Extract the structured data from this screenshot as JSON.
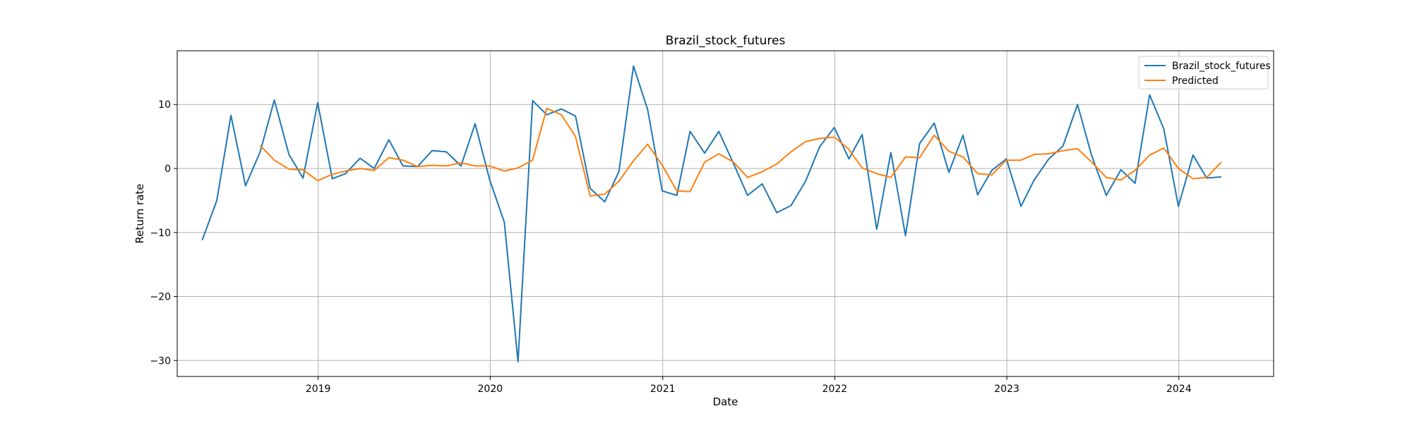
{
  "chart_data": {
    "type": "line",
    "title": "Brazil_stock_futures",
    "xlabel": "Date",
    "ylabel": "Return rate",
    "xlim": [
      "2018-03-08",
      "2024-07-20"
    ],
    "ylim": [
      -32.5,
      18.4
    ],
    "x_ticks": [
      {
        "date": "2019-01-01",
        "label": "2019"
      },
      {
        "date": "2020-01-01",
        "label": "2020"
      },
      {
        "date": "2021-01-01",
        "label": "2021"
      },
      {
        "date": "2022-01-01",
        "label": "2022"
      },
      {
        "date": "2023-01-01",
        "label": "2023"
      },
      {
        "date": "2024-01-01",
        "label": "2024"
      }
    ],
    "y_ticks": [
      {
        "value": 10,
        "label": "10"
      },
      {
        "value": 0,
        "label": "0"
      },
      {
        "value": -10,
        "label": "−10"
      },
      {
        "value": -20,
        "label": "−20"
      },
      {
        "value": -30,
        "label": "−30"
      }
    ],
    "grid": true,
    "legend_position": "top-right",
    "series": [
      {
        "name": "Brazil_stock_futures",
        "color": "#1f77b4",
        "points": [
          [
            "2018-04-30",
            -11.2
          ],
          [
            "2018-05-31",
            -5.0
          ],
          [
            "2018-06-30",
            8.3
          ],
          [
            "2018-07-31",
            -2.7
          ],
          [
            "2018-08-31",
            2.6
          ],
          [
            "2018-09-30",
            10.7
          ],
          [
            "2018-10-31",
            2.2
          ],
          [
            "2018-11-30",
            -1.5
          ],
          [
            "2018-12-31",
            10.3
          ],
          [
            "2019-01-31",
            -1.6
          ],
          [
            "2019-02-28",
            -0.8
          ],
          [
            "2019-03-31",
            1.6
          ],
          [
            "2019-04-30",
            0.0
          ],
          [
            "2019-05-31",
            4.5
          ],
          [
            "2019-06-30",
            0.4
          ],
          [
            "2019-07-31",
            0.3
          ],
          [
            "2019-08-31",
            2.8
          ],
          [
            "2019-09-30",
            2.6
          ],
          [
            "2019-10-31",
            0.4
          ],
          [
            "2019-11-30",
            7.0
          ],
          [
            "2019-12-31",
            -1.8
          ],
          [
            "2020-01-31",
            -8.4
          ],
          [
            "2020-02-29",
            -30.2
          ],
          [
            "2020-03-31",
            10.6
          ],
          [
            "2020-04-30",
            8.4
          ],
          [
            "2020-05-31",
            9.3
          ],
          [
            "2020-06-30",
            8.2
          ],
          [
            "2020-07-31",
            -3.1
          ],
          [
            "2020-08-31",
            -5.2
          ],
          [
            "2020-09-30",
            -0.5
          ],
          [
            "2020-10-31",
            16.0
          ],
          [
            "2020-11-30",
            9.2
          ],
          [
            "2020-12-31",
            -3.5
          ],
          [
            "2021-01-31",
            -4.2
          ],
          [
            "2021-02-28",
            5.8
          ],
          [
            "2021-03-31",
            2.4
          ],
          [
            "2021-04-30",
            5.8
          ],
          [
            "2021-05-31",
            0.8
          ],
          [
            "2021-06-30",
            -4.2
          ],
          [
            "2021-07-31",
            -2.4
          ],
          [
            "2021-08-31",
            -6.9
          ],
          [
            "2021-09-30",
            -5.8
          ],
          [
            "2021-10-31",
            -2.0
          ],
          [
            "2021-11-30",
            3.4
          ],
          [
            "2021-12-31",
            6.4
          ],
          [
            "2022-01-31",
            1.5
          ],
          [
            "2022-02-28",
            5.3
          ],
          [
            "2022-03-31",
            -9.5
          ],
          [
            "2022-04-30",
            2.5
          ],
          [
            "2022-05-31",
            -10.5
          ],
          [
            "2022-06-30",
            3.9
          ],
          [
            "2022-07-31",
            7.1
          ],
          [
            "2022-08-31",
            -0.6
          ],
          [
            "2022-09-30",
            5.2
          ],
          [
            "2022-10-31",
            -4.1
          ],
          [
            "2022-11-30",
            -0.3
          ],
          [
            "2022-12-31",
            1.5
          ],
          [
            "2023-01-31",
            -5.9
          ],
          [
            "2023-02-28",
            -1.8
          ],
          [
            "2023-03-31",
            1.5
          ],
          [
            "2023-04-30",
            3.5
          ],
          [
            "2023-05-31",
            10.0
          ],
          [
            "2023-06-30",
            2.0
          ],
          [
            "2023-07-31",
            -4.2
          ],
          [
            "2023-08-31",
            -0.2
          ],
          [
            "2023-09-30",
            -2.3
          ],
          [
            "2023-10-31",
            11.5
          ],
          [
            "2023-11-30",
            6.2
          ],
          [
            "2023-12-31",
            -5.9
          ],
          [
            "2024-01-31",
            2.1
          ],
          [
            "2024-02-29",
            -1.5
          ],
          [
            "2024-03-31",
            -1.3
          ]
        ]
      },
      {
        "name": "Predicted",
        "color": "#ff7f0e",
        "points": [
          [
            "2018-08-31",
            3.6
          ],
          [
            "2018-09-30",
            1.3
          ],
          [
            "2018-10-31",
            -0.1
          ],
          [
            "2018-11-30",
            -0.2
          ],
          [
            "2018-12-31",
            -1.9
          ],
          [
            "2019-01-31",
            -0.9
          ],
          [
            "2019-02-28",
            -0.4
          ],
          [
            "2019-03-31",
            0.0
          ],
          [
            "2019-04-30",
            -0.3
          ],
          [
            "2019-05-31",
            1.7
          ],
          [
            "2019-06-30",
            1.3
          ],
          [
            "2019-07-31",
            0.3
          ],
          [
            "2019-08-31",
            0.5
          ],
          [
            "2019-09-30",
            0.4
          ],
          [
            "2019-10-31",
            0.9
          ],
          [
            "2019-11-30",
            0.4
          ],
          [
            "2019-12-31",
            0.4
          ],
          [
            "2020-01-31",
            -0.4
          ],
          [
            "2020-02-29",
            0.1
          ],
          [
            "2020-03-31",
            1.3
          ],
          [
            "2020-04-30",
            9.4
          ],
          [
            "2020-05-31",
            8.4
          ],
          [
            "2020-06-30",
            5.0
          ],
          [
            "2020-07-31",
            -4.3
          ],
          [
            "2020-08-31",
            -4.0
          ],
          [
            "2020-09-30",
            -2.0
          ],
          [
            "2020-10-31",
            1.2
          ],
          [
            "2020-11-30",
            3.8
          ],
          [
            "2020-12-31",
            0.5
          ],
          [
            "2021-01-31",
            -3.5
          ],
          [
            "2021-02-28",
            -3.6
          ],
          [
            "2021-03-31",
            1.0
          ],
          [
            "2021-04-30",
            2.3
          ],
          [
            "2021-05-31",
            1.0
          ],
          [
            "2021-06-30",
            -1.4
          ],
          [
            "2021-07-31",
            -0.5
          ],
          [
            "2021-08-31",
            0.7
          ],
          [
            "2021-09-30",
            2.6
          ],
          [
            "2021-10-31",
            4.2
          ],
          [
            "2021-11-30",
            4.7
          ],
          [
            "2021-12-31",
            4.9
          ],
          [
            "2022-01-31",
            3.0
          ],
          [
            "2022-02-28",
            0.1
          ],
          [
            "2022-03-31",
            -0.8
          ],
          [
            "2022-04-30",
            -1.4
          ],
          [
            "2022-05-31",
            1.8
          ],
          [
            "2022-06-30",
            1.7
          ],
          [
            "2022-07-31",
            5.2
          ],
          [
            "2022-08-31",
            2.7
          ],
          [
            "2022-09-30",
            1.8
          ],
          [
            "2022-10-31",
            -0.8
          ],
          [
            "2022-11-30",
            -1.0
          ],
          [
            "2022-12-31",
            1.3
          ],
          [
            "2023-01-31",
            1.3
          ],
          [
            "2023-02-28",
            2.2
          ],
          [
            "2023-03-31",
            2.3
          ],
          [
            "2023-04-30",
            2.8
          ],
          [
            "2023-05-31",
            3.1
          ],
          [
            "2023-06-30",
            1.0
          ],
          [
            "2023-07-31",
            -1.4
          ],
          [
            "2023-08-31",
            -1.8
          ],
          [
            "2023-09-30",
            -0.3
          ],
          [
            "2023-10-31",
            2.1
          ],
          [
            "2023-11-30",
            3.2
          ],
          [
            "2023-12-31",
            0.0
          ],
          [
            "2024-01-31",
            -1.6
          ],
          [
            "2024-02-29",
            -1.4
          ],
          [
            "2024-03-31",
            1.0
          ]
        ]
      }
    ]
  }
}
